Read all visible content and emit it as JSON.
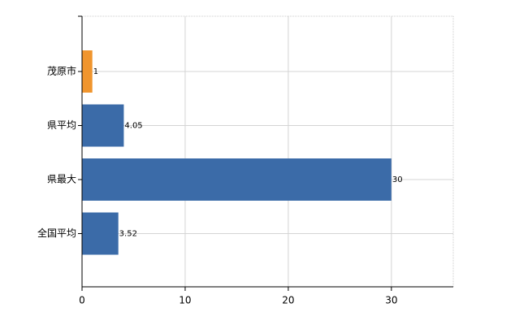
{
  "chart_data": {
    "type": "bar",
    "orientation": "horizontal",
    "categories": [
      "茂原市",
      "県平均",
      "県最大",
      "全国平均"
    ],
    "values": [
      1,
      4.05,
      30,
      3.52
    ],
    "colors": [
      "#f0952e",
      "#3b6ba8",
      "#3b6ba8",
      "#3b6ba8"
    ],
    "xlim": [
      0,
      36
    ],
    "xticks": [
      0,
      10,
      20,
      30
    ],
    "grid": true
  }
}
